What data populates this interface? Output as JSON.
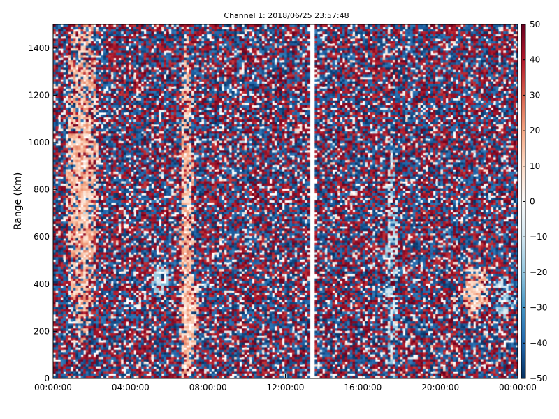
{
  "chart_data": {
    "type": "heatmap",
    "title": "Channel 1: 2018/06/25 23:57:48",
    "xlabel": "",
    "ylabel": "Range (Km)",
    "x_ticks": [
      "00:00:00",
      "04:00:00",
      "08:00:00",
      "12:00:00",
      "16:00:00",
      "20:00:00",
      "00:00:00"
    ],
    "y_ticks": [
      "0",
      "200",
      "400",
      "600",
      "800",
      "1000",
      "1200",
      "1400"
    ],
    "y_tick_values": [
      0,
      200,
      400,
      600,
      800,
      1000,
      1200,
      1400
    ],
    "x_range_hours": [
      0,
      24
    ],
    "ylim": [
      0,
      1500
    ],
    "colorbar": {
      "ticks": [
        "50",
        "40",
        "30",
        "20",
        "10",
        "0",
        "−10",
        "−20",
        "−30",
        "−40",
        "−50"
      ],
      "tick_values": [
        50,
        40,
        30,
        20,
        10,
        0,
        -10,
        -20,
        -30,
        -40,
        -50
      ],
      "range": [
        -50,
        50
      ],
      "colormap": "RdBu_r",
      "colors": [
        "#053061",
        "#2166ac",
        "#4393c3",
        "#92c5de",
        "#d1e5f0",
        "#f7f7f7",
        "#fddbc7",
        "#f4a582",
        "#d6604d",
        "#b2182b",
        "#67001f"
      ]
    },
    "data_gap_hours": [
      13.3,
      13.45
    ],
    "grid": false
  }
}
